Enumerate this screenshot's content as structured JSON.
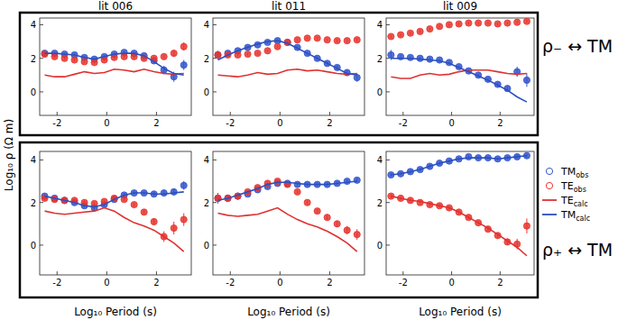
{
  "y_label": "Log₁₀ ρ (Ω m)",
  "row_labels": [
    "ρ₋ ↔ TM",
    "ρ₊ ↔ TM"
  ],
  "chart_data": [
    {
      "type": "scatter",
      "title": "lit 006",
      "xlim": [
        -2.7,
        3.4
      ],
      "xticks": [
        -2,
        0,
        2
      ],
      "ylim": [
        -1.4,
        4.4
      ],
      "yticks": [
        0,
        2,
        4
      ],
      "x": [
        -2.5,
        -2.1,
        -1.7,
        -1.3,
        -0.9,
        -0.5,
        -0.1,
        0.3,
        0.7,
        1.1,
        1.5,
        1.9,
        2.3,
        2.7,
        3.1
      ],
      "series": [
        {
          "name": "TMobs",
          "color": "#3355cc",
          "type": "scatter",
          "marker": "circle",
          "values": [
            2.3,
            2.3,
            2.25,
            2.2,
            2.05,
            1.95,
            2.1,
            2.25,
            2.35,
            2.3,
            2.15,
            1.85,
            1.3,
            0.9,
            1.6
          ],
          "errors": [
            0.1,
            0.08,
            0.08,
            0.08,
            0.08,
            0.08,
            0.08,
            0.08,
            0.08,
            0.08,
            0.1,
            0.12,
            0.25,
            0.3,
            0.3
          ]
        },
        {
          "name": "TEobs",
          "color": "#e8352e",
          "type": "scatter",
          "marker": "circle",
          "values": [
            2.25,
            2.1,
            2.0,
            1.9,
            1.8,
            1.75,
            1.9,
            2.05,
            2.1,
            2.1,
            2.0,
            2.0,
            2.1,
            2.3,
            2.7
          ],
          "errors": [
            0.1,
            0.08,
            0.08,
            0.08,
            0.08,
            0.08,
            0.08,
            0.08,
            0.08,
            0.08,
            0.08,
            0.1,
            0.12,
            0.2,
            0.25
          ]
        },
        {
          "name": "TEcalc",
          "color": "#e03030",
          "type": "line",
          "line_style": "solid",
          "values": [
            1.0,
            0.9,
            0.9,
            1.05,
            1.2,
            1.1,
            1.15,
            1.35,
            1.3,
            1.2,
            1.35,
            1.2,
            1.1,
            1.05,
            1.1
          ]
        },
        {
          "name": "TMcalc",
          "color": "#2a4fc0",
          "type": "line",
          "line_style": "solid",
          "values": [
            2.3,
            2.3,
            2.25,
            2.2,
            2.05,
            1.95,
            2.1,
            2.25,
            2.3,
            2.3,
            2.15,
            1.8,
            1.4,
            1.1,
            1.0
          ]
        }
      ]
    },
    {
      "type": "scatter",
      "title": "lit 011",
      "xlim": [
        -2.7,
        3.4
      ],
      "xticks": [
        -2,
        0,
        2
      ],
      "ylim": [
        -1.4,
        4.4
      ],
      "yticks": [
        0,
        2,
        4
      ],
      "x": [
        -2.5,
        -2.1,
        -1.7,
        -1.3,
        -0.9,
        -0.5,
        -0.1,
        0.3,
        0.7,
        1.1,
        1.5,
        1.9,
        2.3,
        2.7,
        3.1
      ],
      "series": [
        {
          "name": "TMobs",
          "color": "#3355cc",
          "type": "scatter",
          "marker": "circle",
          "values": [
            2.2,
            2.3,
            2.45,
            2.65,
            2.8,
            2.95,
            3.05,
            2.95,
            2.65,
            2.3,
            2.0,
            1.7,
            1.45,
            1.15,
            0.85
          ],
          "errors": [
            0.25,
            0.1,
            0.08,
            0.08,
            0.08,
            0.08,
            0.08,
            0.08,
            0.08,
            0.08,
            0.08,
            0.1,
            0.12,
            0.2,
            0.25
          ]
        },
        {
          "name": "TEobs",
          "color": "#e8352e",
          "type": "scatter",
          "marker": "circle",
          "values": [
            2.2,
            2.2,
            2.2,
            2.25,
            2.3,
            2.45,
            2.7,
            2.95,
            3.1,
            3.2,
            3.2,
            3.1,
            3.05,
            3.05,
            3.1
          ],
          "errors": [
            0.2,
            0.1,
            0.08,
            0.08,
            0.08,
            0.08,
            0.08,
            0.08,
            0.08,
            0.08,
            0.08,
            0.08,
            0.1,
            0.1,
            0.12
          ]
        },
        {
          "name": "TEcalc",
          "color": "#e03030",
          "type": "line",
          "line_style": "solid",
          "values": [
            1.0,
            0.95,
            0.9,
            1.0,
            1.15,
            1.05,
            1.1,
            1.3,
            1.35,
            1.25,
            1.3,
            1.2,
            1.1,
            1.05,
            1.1
          ]
        },
        {
          "name": "TMcalc",
          "color": "#2a4fc0",
          "type": "line",
          "line_style": "solid",
          "values": [
            1.9,
            2.2,
            2.45,
            2.65,
            2.85,
            3.0,
            3.05,
            2.9,
            2.6,
            2.3,
            2.0,
            1.7,
            1.4,
            1.1,
            1.0
          ]
        }
      ]
    },
    {
      "type": "scatter",
      "title": "lit 009",
      "xlim": [
        -2.7,
        3.4
      ],
      "xticks": [
        -2,
        0,
        2
      ],
      "ylim": [
        -1.4,
        4.4
      ],
      "yticks": [
        0,
        2,
        4
      ],
      "x": [
        -2.5,
        -2.1,
        -1.7,
        -1.3,
        -0.9,
        -0.5,
        -0.1,
        0.3,
        0.7,
        1.1,
        1.5,
        1.9,
        2.3,
        2.7,
        3.1
      ],
      "series": [
        {
          "name": "TMobs",
          "color": "#3355cc",
          "type": "scatter",
          "marker": "circle",
          "values": [
            2.2,
            2.1,
            2.05,
            2.0,
            1.95,
            1.9,
            1.75,
            1.5,
            1.25,
            1.0,
            0.75,
            0.45,
            0.2,
            1.2,
            0.7
          ],
          "errors": [
            0.3,
            0.1,
            0.08,
            0.08,
            0.08,
            0.08,
            0.08,
            0.08,
            0.08,
            0.08,
            0.1,
            0.12,
            0.15,
            0.3,
            0.4
          ]
        },
        {
          "name": "TEobs",
          "color": "#e8352e",
          "type": "scatter",
          "marker": "circle",
          "values": [
            3.3,
            3.4,
            3.5,
            3.6,
            3.75,
            3.9,
            4.0,
            4.05,
            4.1,
            4.1,
            4.1,
            4.05,
            4.1,
            4.15,
            4.2
          ],
          "errors": [
            0.08,
            0.08,
            0.08,
            0.08,
            0.08,
            0.08,
            0.08,
            0.08,
            0.08,
            0.08,
            0.08,
            0.08,
            0.08,
            0.1,
            0.1
          ]
        },
        {
          "name": "TEcalc",
          "color": "#e03030",
          "type": "line",
          "line_style": "solid",
          "values": [
            0.9,
            0.8,
            0.8,
            1.0,
            1.1,
            1.0,
            1.05,
            1.2,
            1.3,
            1.3,
            1.3,
            1.2,
            1.1,
            1.05,
            1.1
          ]
        },
        {
          "name": "TMcalc",
          "color": "#2a4fc0",
          "type": "line",
          "line_style": "solid",
          "values": [
            2.0,
            2.0,
            2.0,
            1.95,
            1.9,
            1.85,
            1.7,
            1.45,
            1.2,
            0.95,
            0.7,
            0.4,
            0.1,
            -0.3,
            -0.6
          ]
        }
      ]
    },
    {
      "type": "scatter",
      "x_label": "Log₁₀ Period (s)",
      "xlim": [
        -2.7,
        3.4
      ],
      "xticks": [
        -2,
        0,
        2
      ],
      "ylim": [
        -1.4,
        4.4
      ],
      "yticks": [
        0,
        2,
        4
      ],
      "x": [
        -2.5,
        -2.1,
        -1.7,
        -1.3,
        -0.9,
        -0.5,
        -0.1,
        0.3,
        0.7,
        1.1,
        1.5,
        1.9,
        2.3,
        2.7,
        3.1
      ],
      "series": [
        {
          "name": "TMobs",
          "color": "#3355cc",
          "type": "scatter",
          "marker": "circle",
          "values": [
            2.3,
            2.2,
            2.1,
            2.0,
            1.85,
            1.75,
            1.9,
            2.15,
            2.35,
            2.45,
            2.45,
            2.4,
            2.45,
            2.5,
            2.8
          ],
          "errors": [
            0.1,
            0.08,
            0.08,
            0.08,
            0.08,
            0.08,
            0.08,
            0.08,
            0.08,
            0.08,
            0.08,
            0.1,
            0.12,
            0.15,
            0.2
          ]
        },
        {
          "name": "TEobs",
          "color": "#e8352e",
          "type": "scatter",
          "marker": "circle",
          "values": [
            2.2,
            2.15,
            2.1,
            2.1,
            2.0,
            1.95,
            2.05,
            2.2,
            2.15,
            1.9,
            1.55,
            1.1,
            0.4,
            0.8,
            1.2
          ],
          "errors": [
            0.1,
            0.08,
            0.08,
            0.08,
            0.08,
            0.08,
            0.08,
            0.08,
            0.08,
            0.08,
            0.1,
            0.15,
            0.25,
            0.3,
            0.3
          ]
        },
        {
          "name": "TEcalc",
          "color": "#e03030",
          "type": "line",
          "line_style": "solid",
          "values": [
            1.6,
            1.5,
            1.45,
            1.5,
            1.55,
            1.6,
            1.75,
            1.6,
            1.3,
            1.05,
            0.9,
            0.7,
            0.4,
            0.1,
            -0.3
          ]
        },
        {
          "name": "TMcalc",
          "color": "#2a4fc0",
          "type": "line",
          "line_style": "solid",
          "values": [
            2.3,
            2.2,
            2.1,
            2.0,
            1.85,
            1.8,
            1.9,
            2.15,
            2.35,
            2.45,
            2.45,
            2.4,
            2.4,
            2.45,
            2.5
          ]
        }
      ]
    },
    {
      "type": "scatter",
      "x_label": "Log₁₀ Period (s)",
      "xlim": [
        -2.7,
        3.4
      ],
      "xticks": [
        -2,
        0,
        2
      ],
      "ylim": [
        -1.4,
        4.4
      ],
      "yticks": [
        0,
        2,
        4
      ],
      "x": [
        -2.5,
        -2.1,
        -1.7,
        -1.3,
        -0.9,
        -0.5,
        -0.1,
        0.3,
        0.7,
        1.1,
        1.5,
        1.9,
        2.3,
        2.7,
        3.1
      ],
      "series": [
        {
          "name": "TMobs",
          "color": "#3355cc",
          "type": "scatter",
          "marker": "circle",
          "values": [
            2.2,
            2.2,
            2.3,
            2.4,
            2.6,
            2.75,
            2.9,
            2.9,
            2.85,
            2.85,
            2.85,
            2.85,
            2.9,
            3.0,
            3.05
          ],
          "errors": [
            0.25,
            0.1,
            0.08,
            0.08,
            0.08,
            0.08,
            0.08,
            0.08,
            0.08,
            0.08,
            0.08,
            0.08,
            0.08,
            0.1,
            0.1
          ]
        },
        {
          "name": "TEobs",
          "color": "#e8352e",
          "type": "scatter",
          "marker": "circle",
          "values": [
            2.2,
            2.2,
            2.3,
            2.5,
            2.7,
            2.9,
            3.0,
            2.85,
            2.5,
            2.0,
            1.6,
            1.3,
            1.0,
            0.7,
            0.5
          ],
          "errors": [
            0.2,
            0.1,
            0.08,
            0.08,
            0.08,
            0.08,
            0.08,
            0.08,
            0.08,
            0.08,
            0.1,
            0.12,
            0.15,
            0.2,
            0.25
          ]
        },
        {
          "name": "TEcalc",
          "color": "#e03030",
          "type": "line",
          "line_style": "solid",
          "values": [
            1.5,
            1.4,
            1.35,
            1.4,
            1.45,
            1.6,
            1.75,
            1.45,
            1.2,
            1.0,
            0.85,
            0.65,
            0.4,
            0.1,
            -0.3
          ]
        },
        {
          "name": "TMcalc",
          "color": "#2a4fc0",
          "type": "line",
          "line_style": "solid",
          "values": [
            2.1,
            2.2,
            2.35,
            2.5,
            2.65,
            2.85,
            2.95,
            2.95,
            2.9,
            2.85,
            2.85,
            2.85,
            2.9,
            2.95,
            3.0
          ]
        }
      ]
    },
    {
      "type": "scatter",
      "x_label": "Log₁₀ Period (s)",
      "xlim": [
        -2.7,
        3.4
      ],
      "xticks": [
        -2,
        0,
        2
      ],
      "ylim": [
        -1.4,
        4.4
      ],
      "yticks": [
        0,
        2,
        4
      ],
      "x": [
        -2.5,
        -2.1,
        -1.7,
        -1.3,
        -0.9,
        -0.5,
        -0.1,
        0.3,
        0.7,
        1.1,
        1.5,
        1.9,
        2.3,
        2.7,
        3.1
      ],
      "series": [
        {
          "name": "TMobs",
          "color": "#3355cc",
          "type": "scatter",
          "marker": "circle",
          "values": [
            3.3,
            3.35,
            3.45,
            3.55,
            3.7,
            3.85,
            3.95,
            4.05,
            4.15,
            4.1,
            4.1,
            4.05,
            4.1,
            4.15,
            4.2
          ],
          "errors": [
            0.08,
            0.08,
            0.08,
            0.08,
            0.08,
            0.08,
            0.08,
            0.08,
            0.08,
            0.08,
            0.08,
            0.08,
            0.08,
            0.1,
            0.1
          ]
        },
        {
          "name": "TEobs",
          "color": "#e8352e",
          "type": "scatter",
          "marker": "circle",
          "values": [
            2.3,
            2.2,
            2.1,
            2.0,
            1.9,
            1.85,
            1.75,
            1.55,
            1.3,
            1.05,
            0.75,
            0.45,
            0.15,
            0.05,
            0.9
          ],
          "errors": [
            0.1,
            0.08,
            0.08,
            0.08,
            0.08,
            0.08,
            0.08,
            0.08,
            0.08,
            0.08,
            0.1,
            0.12,
            0.15,
            0.25,
            0.35
          ]
        },
        {
          "name": "TEcalc",
          "color": "#e03030",
          "type": "line",
          "line_style": "solid",
          "values": [
            2.3,
            2.2,
            2.1,
            2.05,
            1.95,
            1.85,
            1.75,
            1.55,
            1.3,
            1.05,
            0.8,
            0.5,
            0.2,
            -0.1,
            -0.5
          ]
        },
        {
          "name": "TMcalc",
          "color": "#2a4fc0",
          "type": "line",
          "line_style": "solid",
          "values": [
            3.3,
            3.35,
            3.45,
            3.55,
            3.7,
            3.85,
            3.95,
            4.05,
            4.1,
            4.1,
            4.1,
            4.05,
            4.1,
            4.15,
            4.2
          ]
        }
      ]
    }
  ]
}
